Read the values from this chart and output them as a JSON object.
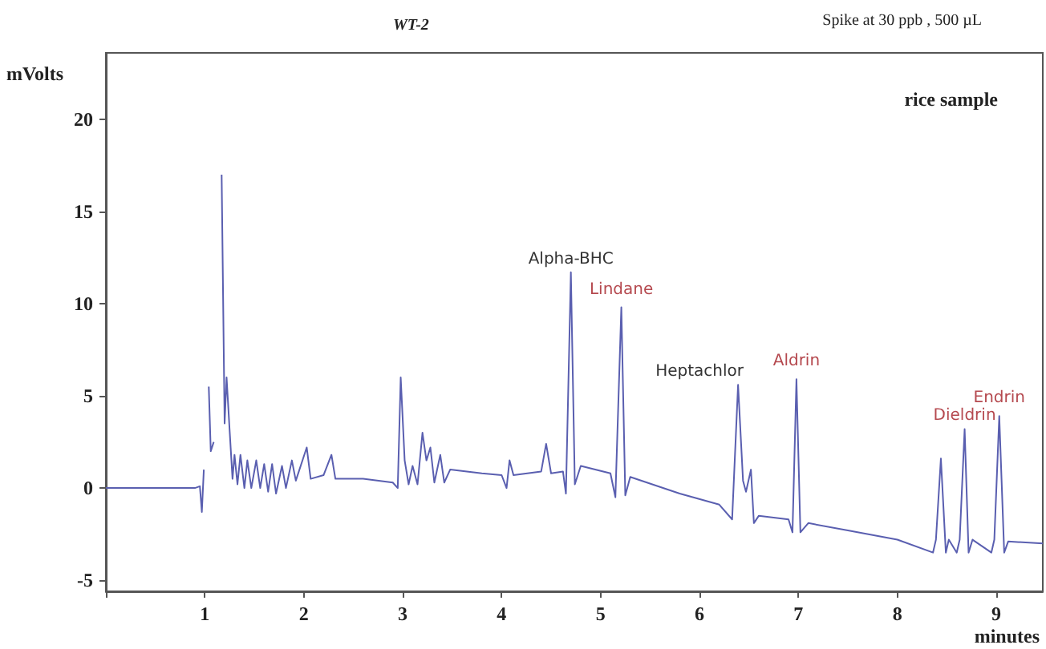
{
  "chart_data": {
    "type": "line",
    "title": "WT-2",
    "xlabel": "minutes",
    "ylabel": "mVolts",
    "annotations": [
      "Spike at 30 ppb , 500 µL",
      "rice sample",
      {
        "text": "Alpha-BHC",
        "x": 4.7,
        "y": 11.7
      },
      {
        "text": "Lindane",
        "x": 5.21,
        "y": 9.8
      },
      {
        "text": "Heptachlor",
        "x": 6.39,
        "y": 5.6
      },
      {
        "text": "Aldrin",
        "x": 6.98,
        "y": 5.9
      },
      {
        "text": "Dieldrin",
        "x": 8.68,
        "y": 3.2
      },
      {
        "text": "Endrin",
        "x": 9.03,
        "y": 3.9
      }
    ],
    "x": [
      0,
      0.9,
      0.95,
      0.97,
      0.99,
      1.0,
      1.02,
      1.04,
      1.06,
      1.09,
      1.1,
      1.16,
      1.17,
      1.2,
      1.22,
      1.25,
      1.28,
      1.3,
      1.33,
      1.36,
      1.4,
      1.43,
      1.47,
      1.52,
      1.56,
      1.6,
      1.64,
      1.68,
      1.72,
      1.78,
      1.82,
      1.88,
      1.92,
      2.03,
      2.07,
      2.2,
      2.28,
      2.32,
      2.6,
      2.9,
      2.95,
      2.98,
      3.02,
      3.06,
      3.1,
      3.15,
      3.2,
      3.24,
      3.28,
      3.32,
      3.38,
      3.42,
      3.48,
      3.8,
      4.0,
      4.05,
      4.08,
      4.12,
      4.4,
      4.45,
      4.5,
      4.62,
      4.65,
      4.7,
      4.74,
      4.8,
      5.1,
      5.15,
      5.21,
      5.25,
      5.3,
      5.8,
      6.2,
      6.33,
      6.39,
      6.44,
      6.47,
      6.52,
      6.55,
      6.6,
      6.9,
      6.94,
      6.98,
      7.02,
      7.1,
      7.5,
      8.0,
      8.36,
      8.39,
      8.44,
      8.49,
      8.52,
      8.6,
      8.63,
      8.68,
      8.72,
      8.76,
      8.95,
      8.98,
      9.03,
      9.08,
      9.12,
      9.47
    ],
    "series": [
      {
        "color": "#5a5fb0",
        "values": [
          0,
          0,
          0.1,
          -1.3,
          1,
          null,
          null,
          5.5,
          2,
          2.5,
          null,
          null,
          17,
          3.5,
          6,
          3.2,
          0.5,
          1.8,
          0.2,
          1.8,
          0,
          1.5,
          0,
          1.5,
          0,
          1.3,
          -0.2,
          1.3,
          -0.3,
          1.2,
          0,
          1.5,
          0.4,
          2.2,
          0.5,
          0.7,
          1.8,
          0.5,
          0.5,
          0.3,
          0,
          6,
          1.5,
          0.2,
          1.2,
          0.2,
          3,
          1.5,
          2.2,
          0.3,
          1.8,
          0.3,
          1,
          0.8,
          0.7,
          0,
          1.5,
          0.7,
          0.9,
          2.4,
          0.8,
          0.9,
          -0.3,
          11.7,
          0.2,
          1.2,
          0.8,
          -0.5,
          9.8,
          -0.4,
          0.6,
          -0.3,
          -0.9,
          -1.7,
          5.6,
          0.4,
          -0.2,
          1,
          -1.9,
          -1.5,
          -1.7,
          -2.4,
          5.9,
          -2.4,
          -1.9,
          -2.3,
          -2.8,
          -3.5,
          -2.8,
          1.6,
          -3.5,
          -2.8,
          -3.5,
          -2.8,
          3.2,
          -3.5,
          -2.8,
          -3.5,
          -2.8,
          3.9,
          -3.5,
          -2.9,
          -3.0
        ]
      }
    ],
    "xlim": [
      0,
      9.47
    ],
    "ylim": [
      -5.6,
      23.6
    ],
    "xticks": [
      {
        "value": 0,
        "label": null
      },
      1,
      2,
      3,
      4,
      5,
      6,
      7,
      8,
      9
    ],
    "yticks": [
      -5,
      0,
      5,
      10,
      15,
      20
    ],
    "grid": false,
    "marker": "none",
    "line_style": "solid"
  }
}
